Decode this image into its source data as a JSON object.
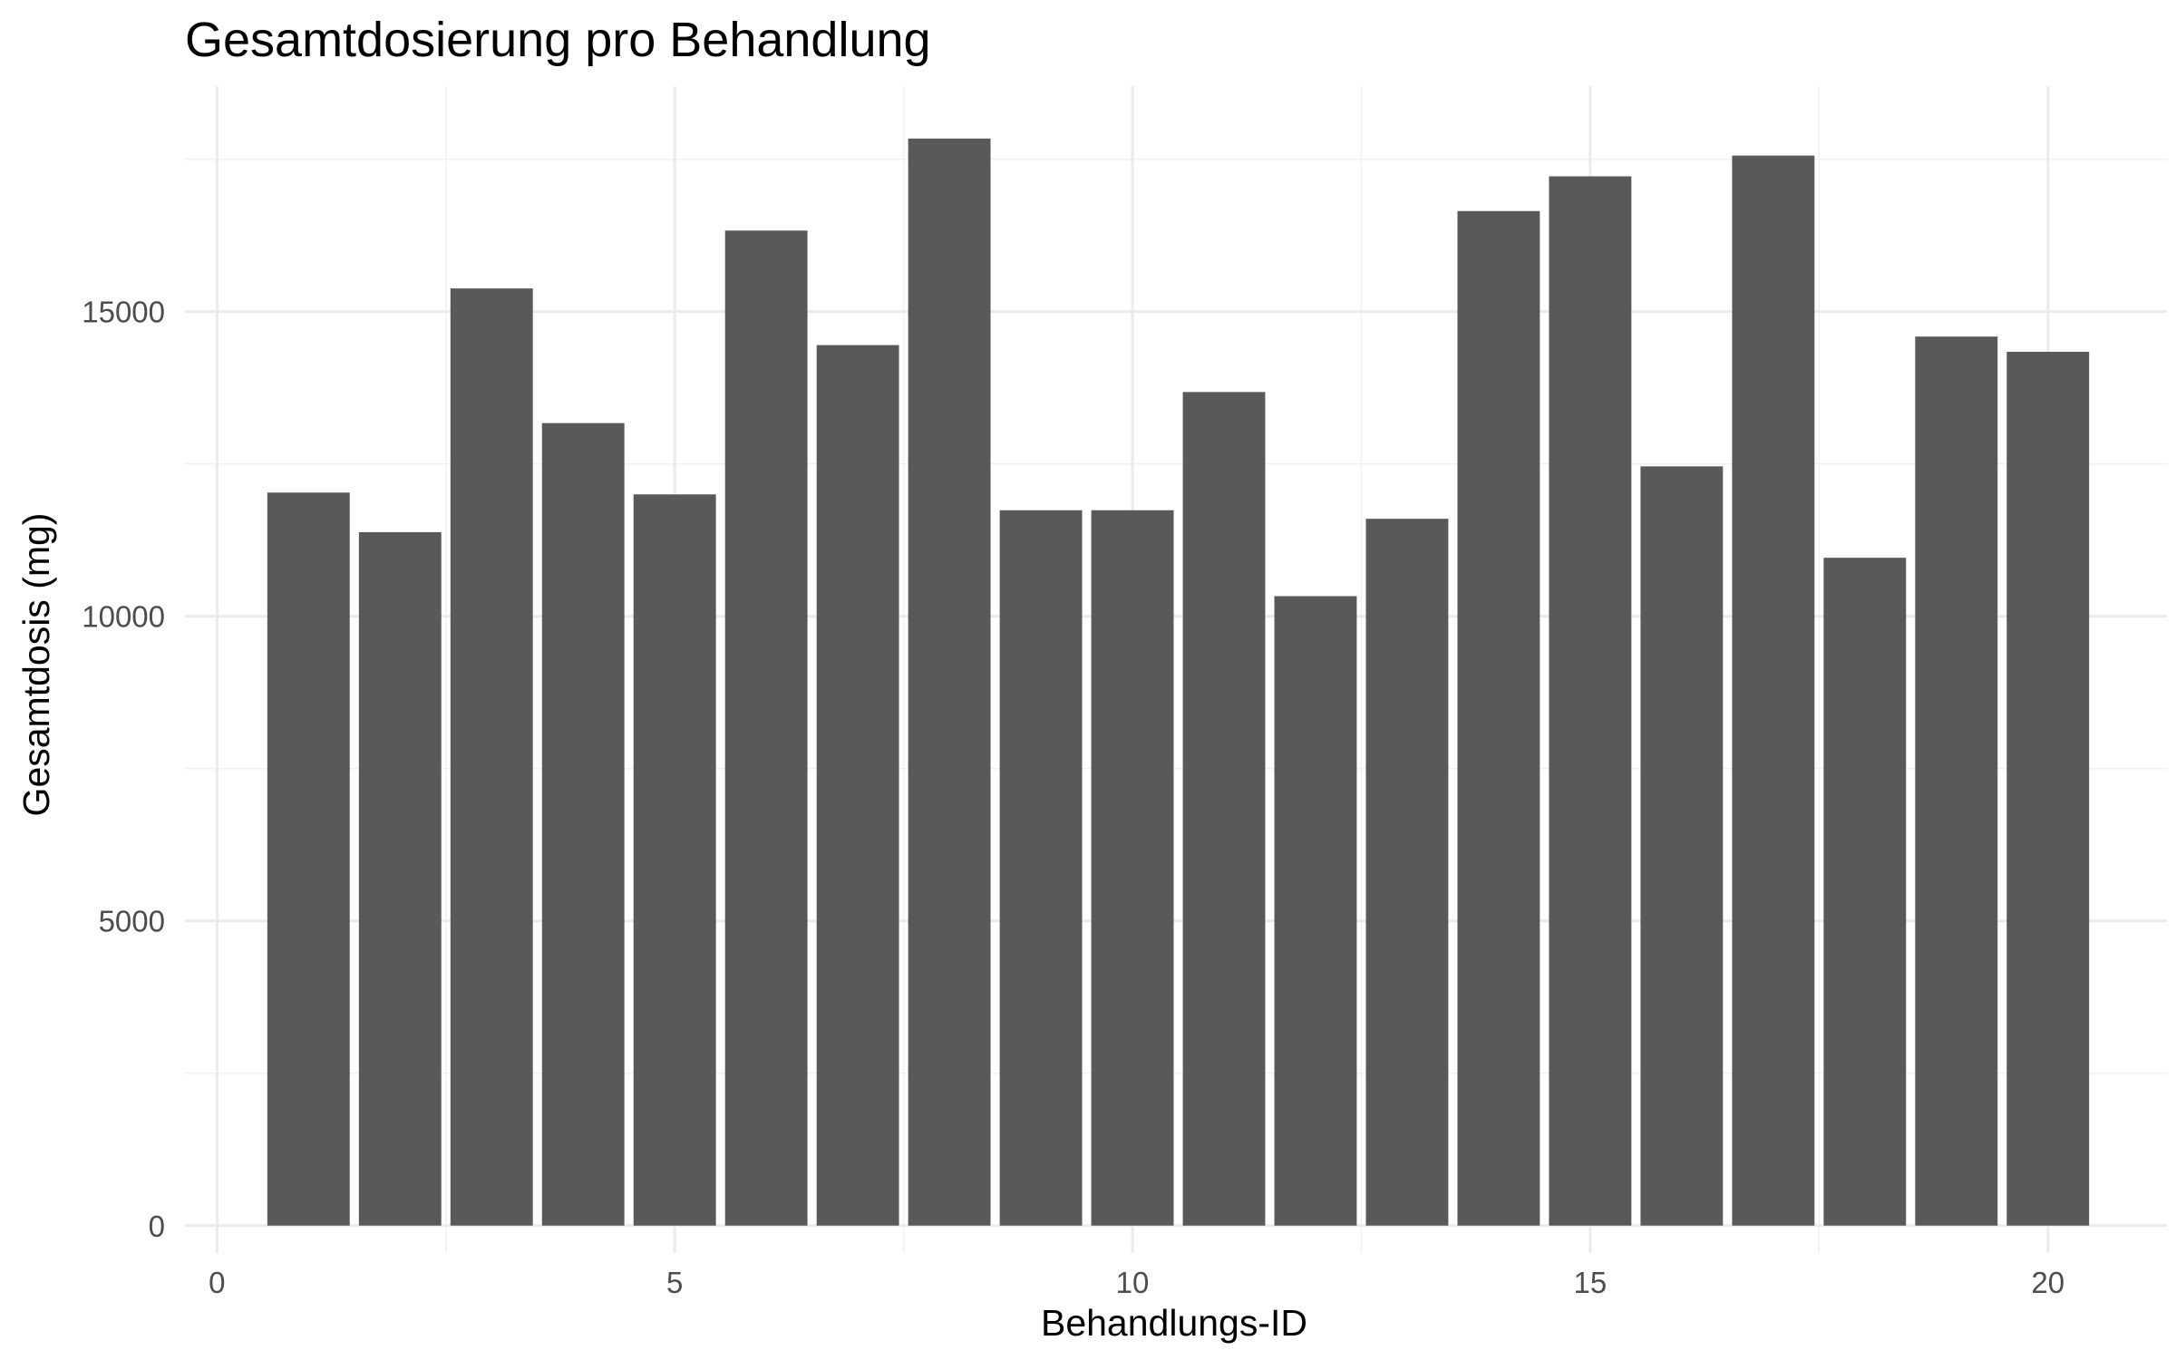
{
  "chart_data": {
    "type": "bar",
    "title": "Gesamtdosierung pro Behandlung",
    "xlabel": "Behandlungs-ID",
    "ylabel": "Gesamtdosis (mg)",
    "x": [
      1,
      2,
      3,
      4,
      5,
      6,
      7,
      8,
      9,
      10,
      11,
      12,
      13,
      14,
      15,
      16,
      17,
      18,
      19,
      20
    ],
    "values": [
      12030,
      11380,
      15380,
      13170,
      12000,
      16330,
      14450,
      17840,
      11740,
      11740,
      13680,
      10330,
      11600,
      16650,
      17220,
      12460,
      17560,
      10960,
      14590,
      14340
    ],
    "xlim": [
      -0.35,
      21.3
    ],
    "ylim": [
      -450,
      18700
    ],
    "x_ticks": [
      0,
      5,
      10,
      15,
      20
    ],
    "y_ticks": [
      0,
      5000,
      10000,
      15000
    ],
    "grid": true,
    "bar_color": "#595959",
    "grid_color": "#ebebeb"
  }
}
